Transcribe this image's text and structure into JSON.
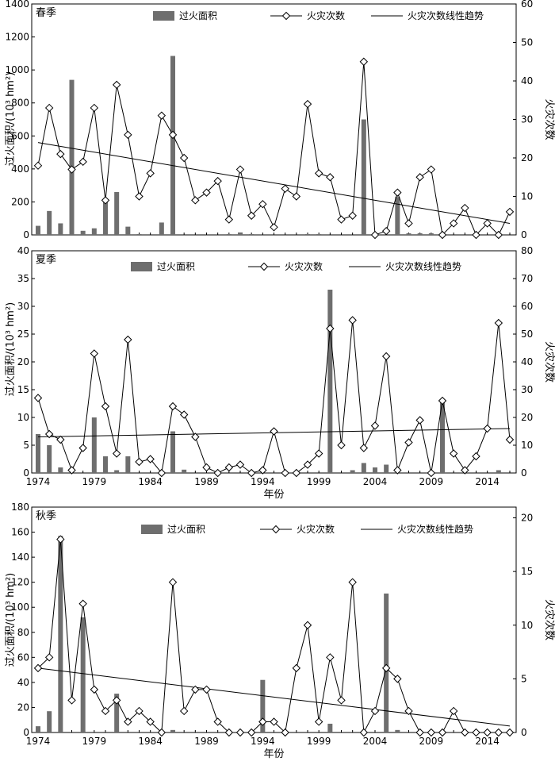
{
  "chart_data": [
    {
      "type": "bar+line",
      "season_label": "春季",
      "legend": [
        "过火面积",
        "火灾次数",
        "火灾次数线性趋势"
      ],
      "ylabel_left": "过火面积/(10³ hm²)",
      "ylabel_right": "火灾次数",
      "xlabel": "",
      "x_tick_labels": [],
      "ylim_left": [
        0,
        1400
      ],
      "ylim_right": [
        0,
        60
      ],
      "yticks_left": [
        "0",
        "200",
        "400",
        "600",
        "800",
        "1000",
        "1200",
        "1400"
      ],
      "yticks_right": [
        "0",
        "10",
        "20",
        "30",
        "40",
        "50",
        "60"
      ],
      "years": [
        1974,
        1975,
        1976,
        1977,
        1978,
        1979,
        1980,
        1981,
        1982,
        1983,
        1984,
        1985,
        1986,
        1987,
        1988,
        1989,
        1990,
        1991,
        1992,
        1993,
        1994,
        1995,
        1996,
        1997,
        1998,
        1999,
        2000,
        2001,
        2002,
        2003,
        2004,
        2005,
        2006,
        2007,
        2008,
        2009,
        2010,
        2011,
        2012,
        2013,
        2014,
        2015,
        2016
      ],
      "area": [
        55,
        145,
        70,
        940,
        25,
        40,
        210,
        260,
        50,
        5,
        0,
        75,
        1085,
        0,
        0,
        0,
        0,
        5,
        15,
        5,
        0,
        0,
        0,
        0,
        5,
        5,
        0,
        0,
        0,
        700,
        0,
        0,
        230,
        10,
        10,
        10,
        0,
        0,
        0,
        0,
        0,
        0,
        0
      ],
      "fires": [
        18,
        33,
        21,
        17,
        19,
        33,
        9,
        39,
        26,
        10,
        16,
        31,
        26,
        20,
        9,
        11,
        14,
        4,
        17,
        5,
        8,
        2,
        12,
        10,
        34,
        16,
        15,
        4,
        5,
        45,
        0,
        1,
        11,
        3,
        15,
        17,
        0,
        3,
        7,
        0,
        3,
        0,
        6
      ],
      "trend": [
        24,
        3
      ]
    },
    {
      "type": "bar+line",
      "season_label": "夏季",
      "legend": [
        "过火面积",
        "火灾次数",
        "火灾次数线性趋势"
      ],
      "ylabel_left": "过火面积/(10³ hm²)",
      "ylabel_right": "火灾次数",
      "xlabel": "年份",
      "x_tick_labels": [
        "1974",
        "1979",
        "1984",
        "1989",
        "1994",
        "1999",
        "2004",
        "2009",
        "2014"
      ],
      "ylim_left": [
        0,
        40
      ],
      "ylim_right": [
        0,
        80
      ],
      "yticks_left": [
        "0",
        "5",
        "10",
        "15",
        "20",
        "25",
        "30",
        "35",
        "40"
      ],
      "yticks_right": [
        "0",
        "10",
        "20",
        "30",
        "40",
        "50",
        "60",
        "70",
        "80"
      ],
      "years": [
        1974,
        1975,
        1976,
        1977,
        1978,
        1979,
        1980,
        1981,
        1982,
        1983,
        1984,
        1985,
        1986,
        1987,
        1988,
        1989,
        1990,
        1991,
        1992,
        1993,
        1994,
        1995,
        1996,
        1997,
        1998,
        1999,
        2000,
        2001,
        2002,
        2003,
        2004,
        2005,
        2006,
        2007,
        2008,
        2009,
        2010,
        2011,
        2012,
        2013,
        2014,
        2015,
        2016
      ],
      "area": [
        7,
        5,
        1,
        0,
        0,
        10,
        3,
        0.5,
        3,
        0,
        0,
        0,
        7.5,
        0.6,
        0,
        0,
        0,
        0,
        0,
        0,
        0,
        0,
        0,
        0,
        0,
        0,
        33,
        0,
        0.5,
        1.8,
        1,
        1.5,
        0.5,
        0,
        0,
        0,
        13,
        0,
        0,
        0,
        0,
        0.5,
        0
      ],
      "fires": [
        27,
        14,
        12,
        1,
        9,
        43,
        24,
        7,
        48,
        4,
        5,
        0,
        24,
        21,
        13,
        2,
        0,
        2,
        3,
        0,
        1,
        15,
        0,
        0,
        3,
        7,
        52,
        10,
        55,
        9,
        17,
        42,
        1,
        11,
        19,
        0,
        26,
        7,
        1,
        6,
        16,
        54,
        12
      ],
      "trend": [
        13,
        16
      ]
    },
    {
      "type": "bar+line",
      "season_label": "秋季",
      "legend": [
        "过火面积",
        "火灾次数",
        "火灾次数线性趋势"
      ],
      "ylabel_left": "过火面积/(10³ hm²)",
      "ylabel_right": "火灾次数",
      "xlabel": "年份",
      "x_tick_labels": [
        "1974",
        "1979",
        "1984",
        "1989",
        "1994",
        "1999",
        "2004",
        "2009",
        "2014"
      ],
      "ylim_left": [
        0,
        180
      ],
      "ylim_right": [
        0,
        21
      ],
      "yticks_left": [
        "0",
        "20",
        "40",
        "60",
        "80",
        "100",
        "120",
        "140",
        "160",
        "180"
      ],
      "yticks_right": [
        "0",
        "5",
        "10",
        "15",
        "20"
      ],
      "years": [
        1974,
        1975,
        1976,
        1977,
        1978,
        1979,
        1980,
        1981,
        1982,
        1983,
        1984,
        1985,
        1986,
        1987,
        1988,
        1989,
        1990,
        1991,
        1992,
        1993,
        1994,
        1995,
        1996,
        1997,
        1998,
        1999,
        2000,
        2001,
        2002,
        2003,
        2004,
        2005,
        2006,
        2007,
        2008,
        2009,
        2010,
        2011,
        2012,
        2013,
        2014,
        2015,
        2016
      ],
      "area": [
        5,
        17,
        157,
        0,
        92,
        0,
        0,
        31,
        0,
        0,
        0,
        0,
        2,
        0,
        0,
        0,
        0,
        0,
        0,
        0,
        42,
        0,
        0,
        0,
        0,
        0,
        7,
        0,
        0,
        0,
        0,
        111,
        2,
        0,
        0,
        0,
        0,
        0,
        0,
        0,
        0,
        0,
        0
      ],
      "fires": [
        6,
        7,
        18,
        3,
        12,
        4,
        2,
        3,
        1,
        2,
        1,
        0,
        14,
        2,
        4,
        4,
        1,
        0,
        0,
        0,
        1,
        1,
        0,
        6,
        10,
        1,
        7,
        3,
        14,
        0,
        2,
        6,
        5,
        2,
        0,
        0,
        0,
        2,
        0,
        0,
        0,
        0,
        0
      ],
      "trend": [
        6,
        0.6
      ]
    }
  ]
}
